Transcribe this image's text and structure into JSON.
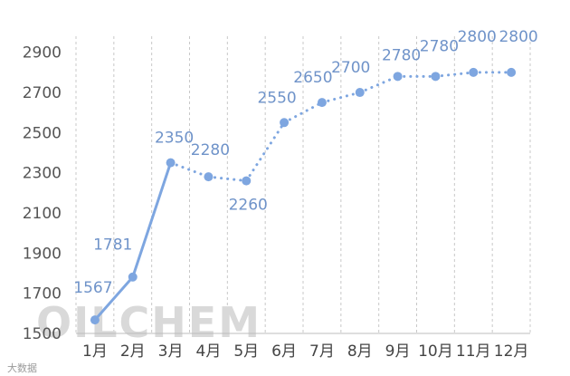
{
  "chart_data": {
    "type": "line",
    "categories": [
      "1月",
      "2月",
      "3月",
      "4月",
      "5月",
      "6月",
      "7月",
      "8月",
      "9月",
      "10月",
      "11月",
      "12月"
    ],
    "values": [
      1567,
      1781,
      2350,
      2280,
      2260,
      2550,
      2650,
      2700,
      2780,
      2780,
      2800,
      2800
    ],
    "data_labels": [
      "1567",
      "1781",
      "2350",
      "2280",
      "2260",
      "2550",
      "2650",
      "2700",
      "2780",
      "2780",
      "2800",
      "2800"
    ],
    "solid_segment_end_index": 2,
    "y_ticks": [
      "1500",
      "1700",
      "1900",
      "2100",
      "2300",
      "2500",
      "2700",
      "2900"
    ],
    "ylim": [
      1500,
      2980
    ],
    "title": "",
    "xlabel": "",
    "ylabel": "",
    "grid": "vertical dashed",
    "line_color": "#7ea6e0",
    "label_color": "#6f93c9"
  },
  "watermark": {
    "text": "OILCHEM",
    "corner_text": "大数据"
  }
}
